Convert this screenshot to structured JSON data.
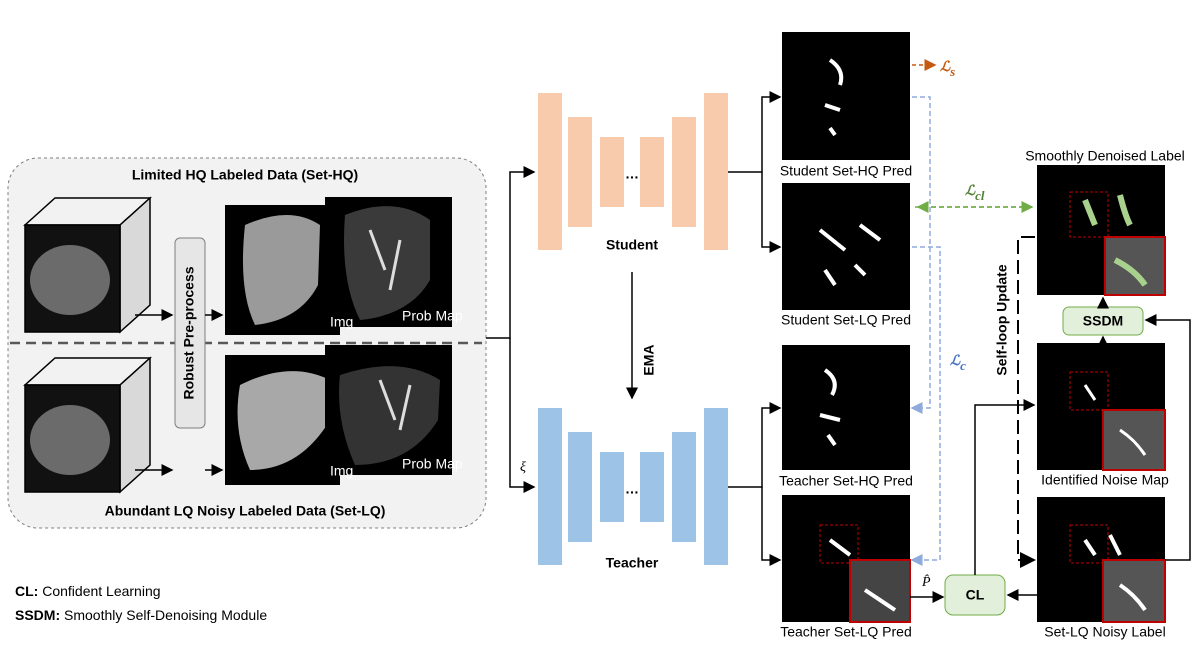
{
  "left_panel": {
    "title_top": "Limited HQ Labeled Data (Set-HQ)",
    "title_bottom": "Abundant LQ Noisy Labeled Data (Set-LQ)",
    "preprocess": "Robust Pre-process",
    "hq_img": "Img",
    "hq_prob": "Prob Map",
    "lq_img": "Img",
    "lq_prob": "Prob Map"
  },
  "network": {
    "student": "Student",
    "teacher": "Teacher",
    "ema": "EMA",
    "xi": "ξ",
    "student_dots": "…",
    "teacher_dots": "…"
  },
  "predictions": {
    "student_hq": "Student Set-HQ Pred",
    "student_lq": "Student Set-LQ Pred",
    "teacher_hq": "Teacher Set-HQ Pred",
    "teacher_lq": "Teacher Set-LQ Pred"
  },
  "losses": {
    "ls": {
      "symbol": "ℒ",
      "sub": "s"
    },
    "lcl": {
      "symbol": "ℒ",
      "sub": "cl"
    },
    "lc": {
      "symbol": "ℒ",
      "sub": "c"
    },
    "p_hat": "P̂"
  },
  "right_panel": {
    "smooth_label": "Smoothly Denoised Label",
    "self_loop": "Self-loop Update",
    "ssdm": "SSDM",
    "noise_map": "Identified Noise Map",
    "cl": "CL",
    "noisy_label": "Set-LQ Noisy Label"
  },
  "legend": [
    {
      "key": "CL:",
      "text": "Confident Learning"
    },
    {
      "key": "SSDM:",
      "text": "Smoothly Self-Denoising Module"
    }
  ]
}
